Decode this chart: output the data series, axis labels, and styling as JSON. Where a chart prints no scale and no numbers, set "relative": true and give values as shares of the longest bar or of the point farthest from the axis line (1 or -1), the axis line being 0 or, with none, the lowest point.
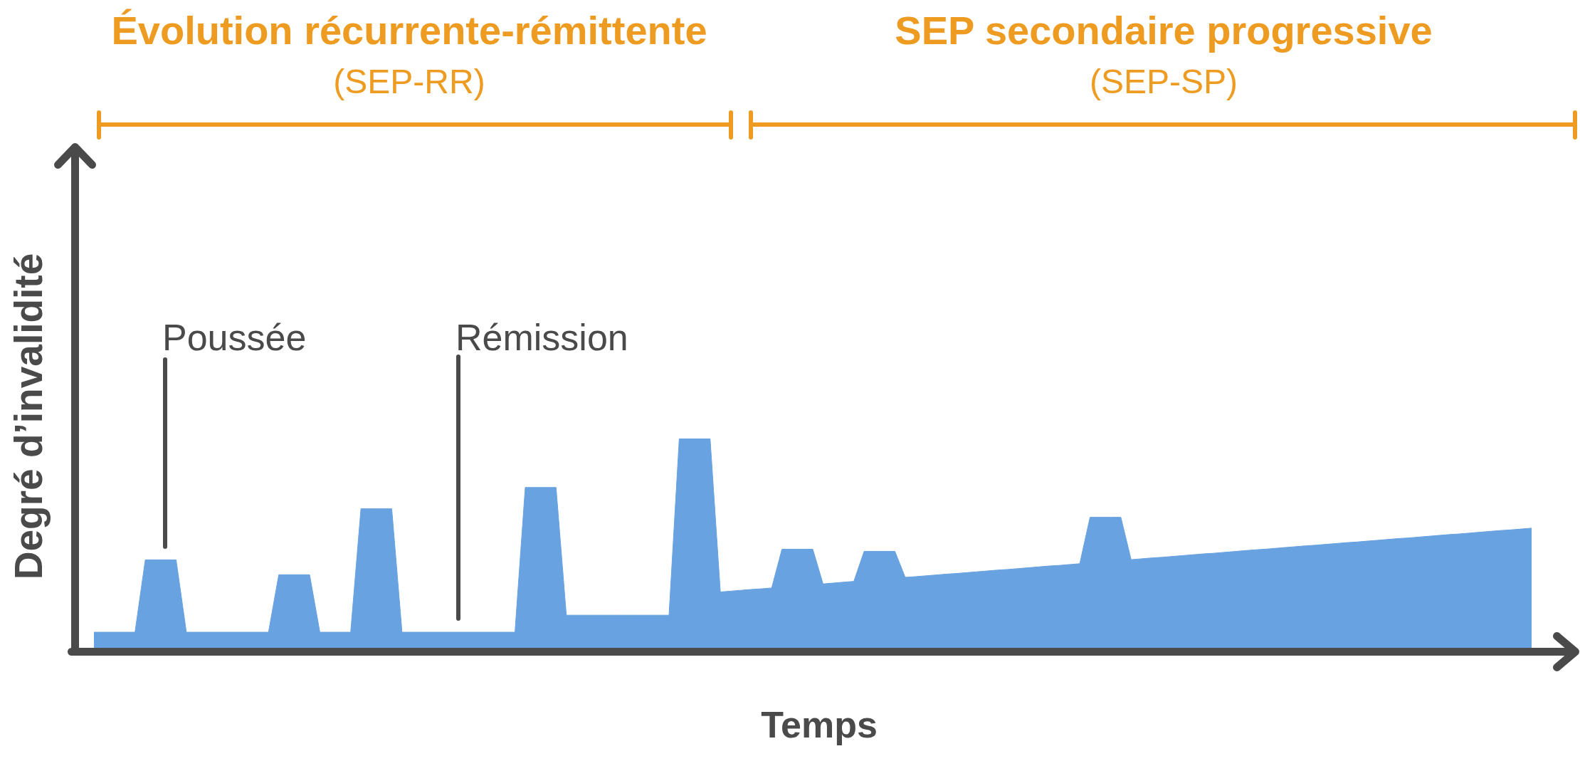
{
  "chart_data": {
    "type": "area",
    "xlabel": "Temps",
    "ylabel": "Degré d’invalidité",
    "annotations": [
      "Évolution récurrente-rémittente",
      "(SEP-RR)",
      "SEP secondaire progressive",
      "(SEP-SP)",
      "Poussée",
      "Rémission"
    ],
    "relative": true,
    "color": "#68a2e0",
    "categories": [
      null,
      null,
      null,
      null,
      null,
      null,
      null,
      null,
      null,
      null,
      null,
      null,
      null,
      null,
      null,
      null,
      null,
      null,
      null,
      null,
      null,
      null,
      null,
      null,
      null,
      null,
      null,
      null,
      null,
      null,
      null,
      null,
      null,
      null,
      null,
      null,
      null,
      null,
      null,
      null,
      null,
      null,
      null,
      null,
      null,
      null,
      null,
      null,
      null,
      null,
      null,
      null,
      null,
      null,
      null,
      null,
      null,
      null,
      null,
      null,
      null,
      null,
      null,
      null,
      null,
      null,
      null,
      null,
      null,
      null,
      null,
      null,
      null,
      null,
      null,
      null,
      null,
      null,
      null,
      null,
      null,
      null,
      null,
      null,
      null,
      null,
      null,
      null,
      null,
      null,
      null,
      null,
      null,
      null,
      null,
      null,
      null,
      null,
      null,
      null,
      null,
      null,
      null,
      null,
      null,
      null,
      null,
      null,
      null,
      null,
      null,
      null,
      null,
      null,
      null,
      null,
      null,
      null,
      null,
      null,
      null,
      null,
      null,
      null,
      null,
      null,
      null,
      null,
      null,
      null,
      null,
      null,
      null,
      null,
      null,
      null,
      null,
      null,
      null,
      null,
      null
    ],
    "values": [
      0.09,
      0.09,
      0.09,
      0.09,
      0.09,
      0.43,
      0.43,
      0.43,
      0.43,
      0.09,
      0.09,
      0.09,
      0.09,
      0.09,
      0.09,
      0.09,
      0.09,
      0.09,
      0.36,
      0.36,
      0.36,
      0.36,
      0.09,
      0.09,
      0.09,
      0.09,
      0.67,
      0.67,
      0.67,
      0.67,
      0.09,
      0.09,
      0.09,
      0.09,
      0.09,
      0.09,
      0.09,
      0.09,
      0.09,
      0.09,
      0.09,
      0.09,
      0.77,
      0.77,
      0.77,
      0.77,
      0.17,
      0.17,
      0.17,
      0.17,
      0.17,
      0.17,
      0.17,
      0.17,
      0.17,
      0.17,
      0.17,
      1,
      1,
      1,
      1,
      0.279,
      0.283,
      0.287,
      0.291,
      0.294,
      0.298,
      0.48,
      0.48,
      0.48,
      0.48,
      0.317,
      0.321,
      0.325,
      0.329,
      0.47,
      0.47,
      0.47,
      0.47,
      0.348,
      0.351,
      0.355,
      0.359,
      0.363,
      0.366,
      0.37,
      0.374,
      0.378,
      0.382,
      0.385,
      0.389,
      0.393,
      0.397,
      0.401,
      0.404,
      0.408,
      0.412,
      0.63,
      0.63,
      0.63,
      0.63,
      0.431,
      0.435,
      0.439,
      0.442,
      0.446,
      0.45,
      0.454,
      0.458,
      0.461,
      0.465,
      0.469,
      0.473,
      0.477,
      0.48,
      0.484,
      0.488,
      0.492,
      0.496,
      0.499,
      0.503,
      0.507,
      0.511,
      0.514,
      0.518,
      0.522,
      0.526,
      0.53,
      0.533,
      0.537,
      0.541,
      0.545,
      0.549,
      0.552,
      0.556,
      0.56,
      0.564,
      0.568,
      0.571,
      0.575,
      0.579
    ]
  }
}
